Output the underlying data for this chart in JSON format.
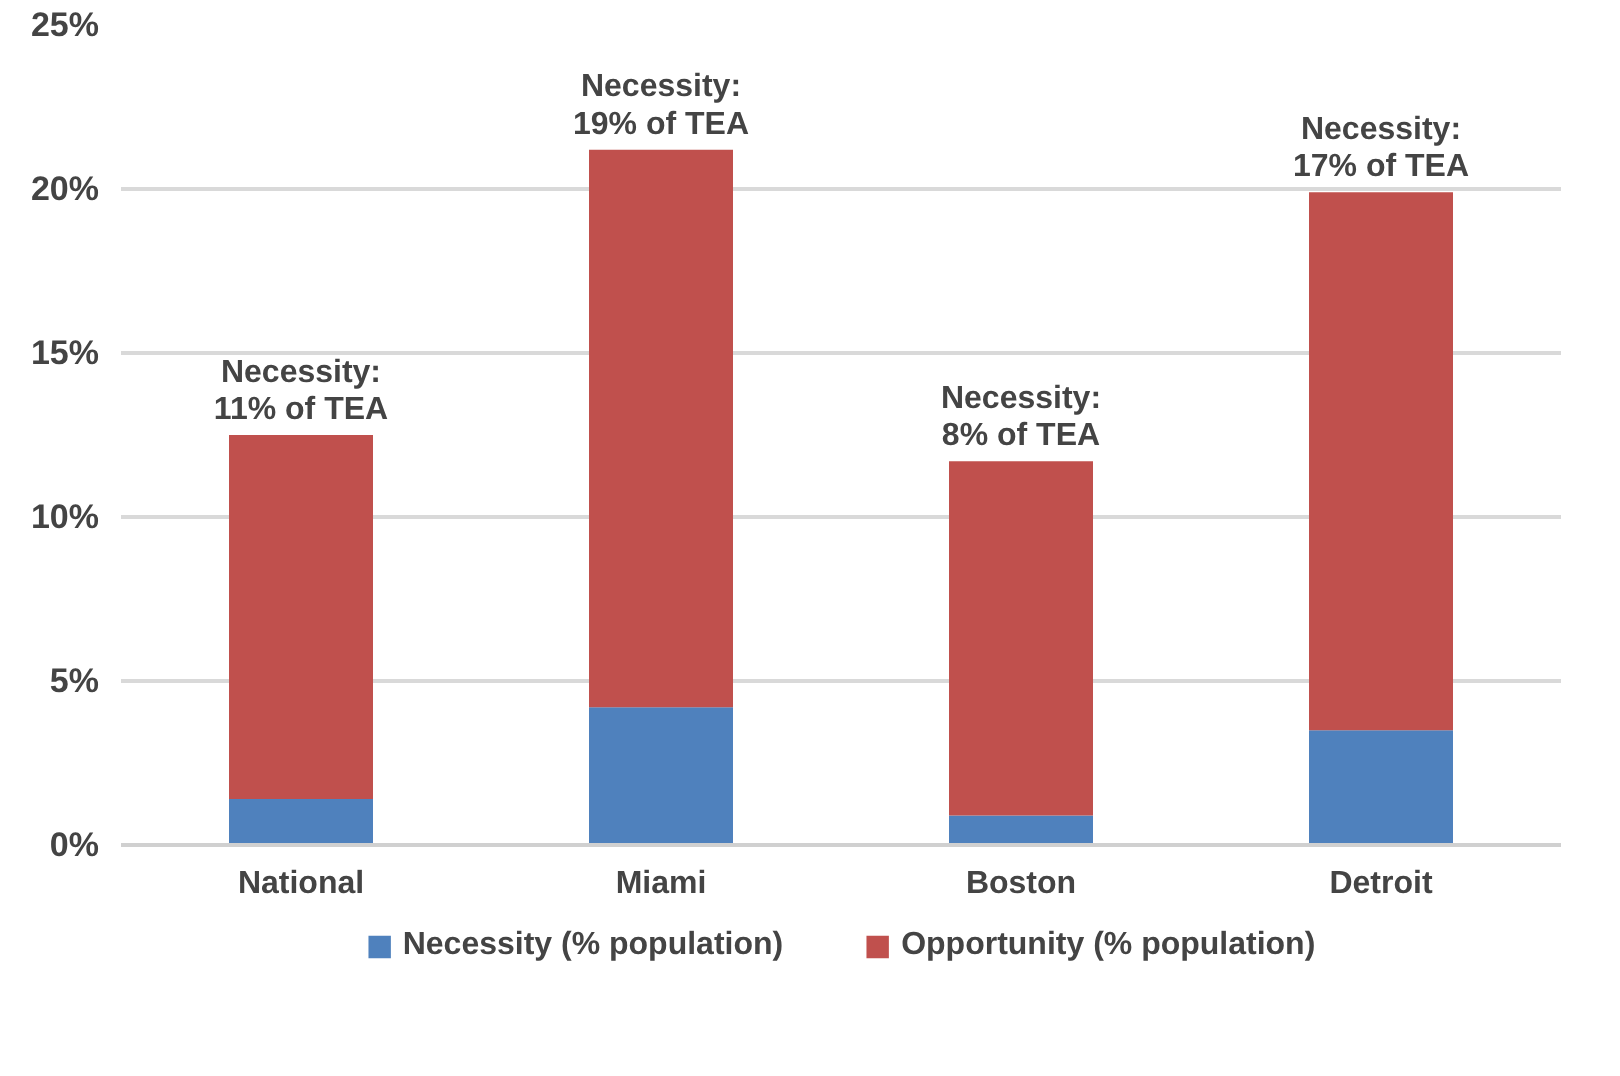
{
  "chart_data": {
    "type": "bar",
    "stacked": true,
    "categories": [
      "National",
      "Miami",
      "Boston",
      "Detroit"
    ],
    "series": [
      {
        "name": "Necessity (% population)",
        "color": "#4f81bd",
        "values": [
          1.4,
          4.2,
          0.9,
          3.5
        ]
      },
      {
        "name": "Opportunity (% population)",
        "color": "#c0504d",
        "values": [
          11.1,
          17.0,
          10.8,
          16.4
        ]
      }
    ],
    "ylim": [
      0,
      25
    ],
    "yticks": [
      {
        "value": 0,
        "label": "0%"
      },
      {
        "value": 5,
        "label": "5%"
      },
      {
        "value": 10,
        "label": "10%"
      },
      {
        "value": 15,
        "label": "15%"
      },
      {
        "value": 20,
        "label": "20%"
      },
      {
        "value": 25,
        "label": "25%"
      }
    ],
    "grid": "y",
    "legend": "bottom",
    "annotations": [
      {
        "text": "Necessity:\n11% of TEA",
        "x": "National",
        "y": 12.5
      },
      {
        "text": "Necessity:\n19% of TEA",
        "x": "Miami",
        "y": 21.2
      },
      {
        "text": "Necessity:\n8% of TEA",
        "x": "Boston",
        "y": 11.7
      },
      {
        "text": "Necessity:\n17% of TEA",
        "x": "Detroit",
        "y": 19.9
      }
    ]
  }
}
